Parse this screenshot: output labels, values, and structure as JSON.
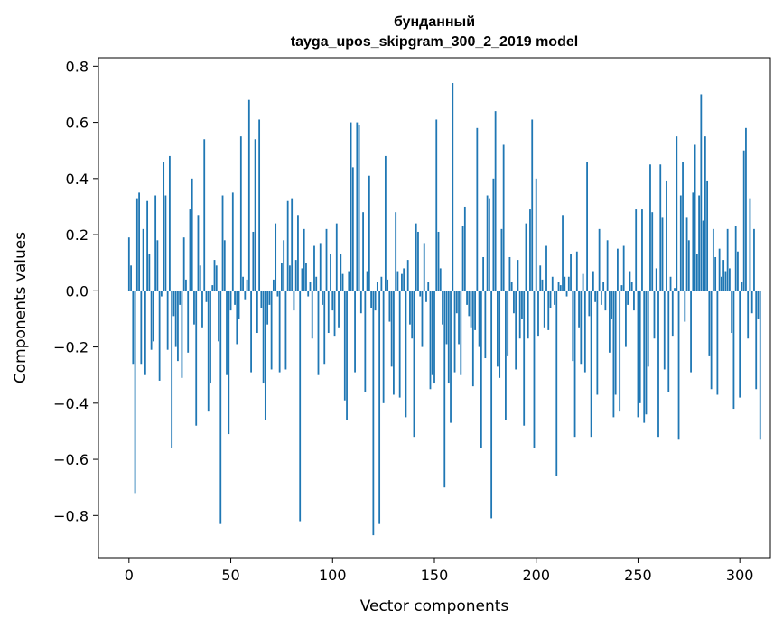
{
  "chart_data": {
    "type": "bar",
    "title": "бунданный",
    "subtitle": "tayga_upos_skipgram_300_2_2019 model",
    "xlabel": "Vector components",
    "ylabel": "Components values",
    "xlim": [
      -15,
      315
    ],
    "ylim": [
      -0.95,
      0.83
    ],
    "xticks": [
      0,
      50,
      100,
      150,
      200,
      250,
      300
    ],
    "yticks": [
      -0.8,
      -0.6,
      -0.4,
      -0.2,
      0.0,
      0.2,
      0.4,
      0.6,
      0.8
    ],
    "xtick_labels": [
      "0",
      "50",
      "100",
      "150",
      "200",
      "250",
      "300"
    ],
    "ytick_labels": [
      "−0.8",
      "−0.6",
      "−0.4",
      "−0.2",
      "0.0",
      "0.2",
      "0.4",
      "0.6",
      "0.8"
    ],
    "grid": false,
    "bar_color": "#1f77b4",
    "series": [
      {
        "values": [
          0.19,
          0.09,
          -0.26,
          -0.72,
          0.33,
          0.35,
          -0.26,
          0.22,
          -0.3,
          0.32,
          0.13,
          -0.21,
          -0.18,
          0.34,
          0.18,
          -0.32,
          -0.02,
          0.46,
          0.34,
          -0.21,
          0.48,
          -0.56,
          -0.09,
          -0.2,
          -0.25,
          -0.05,
          -0.31,
          0.19,
          0.04,
          -0.22,
          0.29,
          0.4,
          -0.12,
          -0.48,
          0.27,
          0.09,
          -0.13,
          0.54,
          -0.04,
          -0.43,
          -0.33,
          0.02,
          0.11,
          0.09,
          -0.18,
          -0.83,
          0.34,
          0.18,
          -0.3,
          -0.51,
          -0.07,
          0.35,
          -0.05,
          -0.19,
          -0.1,
          0.55,
          0.05,
          -0.03,
          0.04,
          0.68,
          -0.29,
          0.21,
          0.54,
          -0.15,
          0.61,
          -0.06,
          -0.33,
          -0.46,
          -0.12,
          -0.05,
          -0.28,
          0.04,
          0.24,
          -0.02,
          -0.29,
          0.1,
          0.18,
          -0.28,
          0.32,
          0.09,
          0.33,
          -0.07,
          0.11,
          0.27,
          -0.82,
          0.08,
          0.22,
          0.1,
          -0.02,
          0.03,
          -0.17,
          0.16,
          0.05,
          -0.3,
          0.17,
          -0.05,
          -0.26,
          0.22,
          -0.15,
          0.13,
          -0.07,
          -0.16,
          0.24,
          -0.13,
          0.13,
          0.06,
          -0.39,
          -0.46,
          0.07,
          0.6,
          0.44,
          -0.29,
          0.6,
          0.59,
          -0.08,
          0.28,
          -0.36,
          0.07,
          0.41,
          -0.06,
          -0.87,
          -0.07,
          0.03,
          -0.83,
          0.05,
          -0.4,
          0.48,
          0.04,
          -0.11,
          -0.27,
          -0.37,
          0.28,
          0.07,
          -0.38,
          0.06,
          0.08,
          -0.45,
          0.11,
          -0.12,
          -0.17,
          -0.52,
          0.24,
          0.21,
          -0.02,
          -0.2,
          0.17,
          -0.04,
          0.03,
          -0.35,
          -0.3,
          -0.33,
          0.61,
          0.21,
          0.08,
          -0.12,
          -0.7,
          -0.19,
          -0.33,
          -0.47,
          0.74,
          -0.29,
          -0.08,
          -0.19,
          -0.3,
          0.23,
          0.3,
          -0.05,
          -0.09,
          -0.13,
          -0.34,
          -0.14,
          0.58,
          -0.2,
          -0.56,
          0.12,
          -0.24,
          0.34,
          0.33,
          -0.81,
          0.4,
          0.64,
          -0.27,
          -0.31,
          0.22,
          0.52,
          -0.46,
          -0.23,
          0.12,
          0.03,
          -0.08,
          -0.28,
          0.11,
          -0.17,
          -0.1,
          -0.48,
          0.24,
          -0.17,
          0.29,
          0.61,
          -0.56,
          0.4,
          -0.16,
          0.09,
          0.04,
          -0.13,
          0.16,
          -0.14,
          -0.06,
          0.05,
          -0.05,
          -0.66,
          0.03,
          0.02,
          0.27,
          0.05,
          -0.02,
          0.05,
          0.13,
          -0.25,
          -0.52,
          0.14,
          -0.13,
          -0.26,
          0.06,
          -0.29,
          0.46,
          -0.09,
          -0.52,
          0.07,
          -0.04,
          -0.37,
          0.22,
          -0.05,
          0.03,
          -0.07,
          0.18,
          -0.22,
          -0.1,
          -0.45,
          -0.37,
          0.15,
          -0.43,
          0.02,
          0.16,
          -0.2,
          -0.05,
          0.07,
          0.03,
          -0.07,
          0.29,
          -0.45,
          -0.4,
          0.29,
          -0.47,
          -0.44,
          -0.27,
          0.45,
          0.28,
          -0.17,
          0.08,
          -0.52,
          0.45,
          0.26,
          -0.28,
          0.39,
          -0.36,
          0.05,
          -0.16,
          0.01,
          0.55,
          -0.53,
          0.34,
          0.46,
          -0.11,
          0.26,
          0.18,
          -0.29,
          0.35,
          0.52,
          0.13,
          0.34,
          0.7,
          0.25,
          0.55,
          0.39,
          -0.23,
          -0.35,
          0.22,
          0.12,
          -0.37,
          0.15,
          0.05,
          0.11,
          0.07,
          0.22,
          0.08,
          -0.15,
          -0.42,
          0.23,
          0.14,
          -0.38,
          0.03,
          0.5,
          0.58,
          -0.17,
          0.33,
          -0.08,
          0.22,
          -0.35,
          -0.1,
          -0.53
        ]
      }
    ]
  }
}
